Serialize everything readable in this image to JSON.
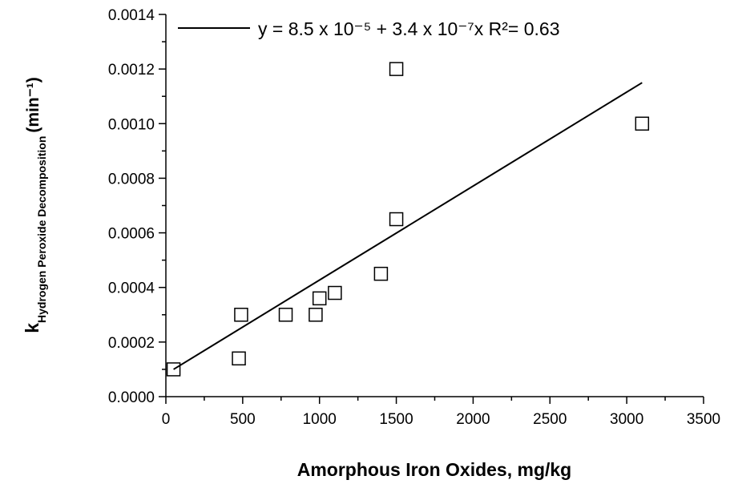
{
  "chart_data": {
    "type": "scatter",
    "x_label": "Amorphous Iron Oxides, mg/kg",
    "y_label": {
      "main": "k",
      "subscript": "Hydrogen Peroxide Decomposition",
      "unit": "(min⁻¹)"
    },
    "xlim": [
      0,
      3500
    ],
    "xticks": [
      0,
      500,
      1000,
      1500,
      2000,
      2500,
      3000,
      3500
    ],
    "ylim": [
      0,
      0.0014
    ],
    "yticks": [
      {
        "value": 0,
        "label": "0.0000"
      },
      {
        "value": 0.0002,
        "label": "0.0002"
      },
      {
        "value": 0.0004,
        "label": "0.0004"
      },
      {
        "value": 0.0006,
        "label": "0.0006"
      },
      {
        "value": 0.0008,
        "label": "0.0008"
      },
      {
        "value": 0.001,
        "label": "0.0010"
      },
      {
        "value": 0.0012,
        "label": "0.0012"
      },
      {
        "value": 0.0014,
        "label": "0.0014"
      }
    ],
    "grid": false,
    "legend": "top-left",
    "series": [
      {
        "color": "#000000",
        "marker": "square",
        "x": [
          50,
          475,
          490,
          780,
          975,
          1000,
          1100,
          1400,
          1500,
          1500,
          3100
        ],
        "values": [
          0.0001,
          0.00014,
          0.0003,
          0.0003,
          0.0003,
          0.00036,
          0.00038,
          0.00045,
          0.00065,
          0.0012,
          0.001
        ]
      },
      {
        "name": "y = 8.5 x 10⁻⁵ + 3.4 x 10⁻⁷x   R²= 0.63",
        "type": "line",
        "color": "#000000",
        "x": [
          50,
          3100
        ],
        "values": [
          0.0001,
          0.00115
        ]
      }
    ]
  }
}
